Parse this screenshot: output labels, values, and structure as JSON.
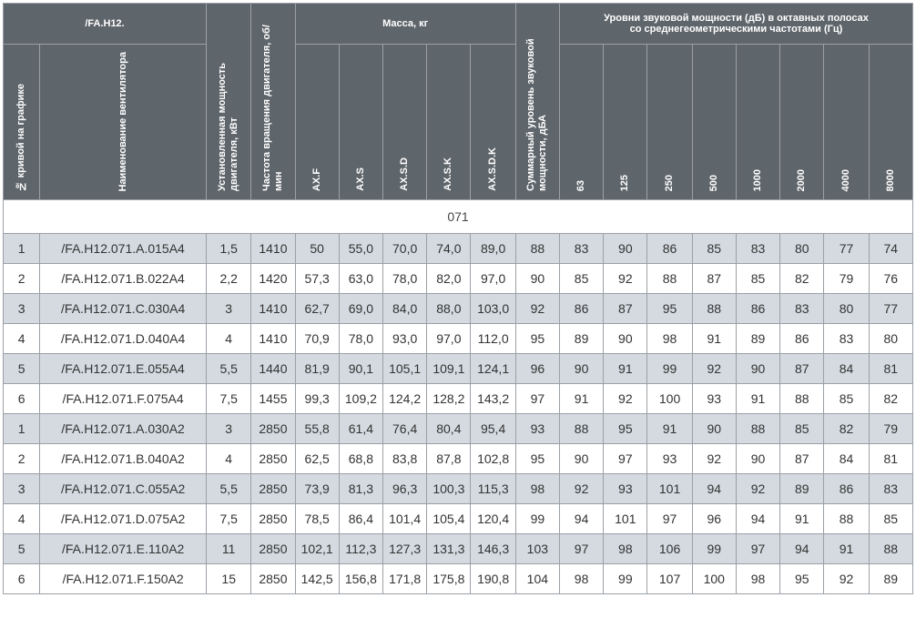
{
  "header": {
    "group_title": "/FA.H12.",
    "mass_title": "Масса, кг",
    "sound_title_line1": "Уровни звуковой мощности (дБ) в октавных полосах",
    "sound_title_line2": "со среднегеометрическими частотами (Гц)",
    "curve_no": "№ кривой на графике",
    "fan_name": "Наименование вентилятора",
    "power": "Установленная мощность двигателя, кВт",
    "speed": "Частота вращения двигателя, об/мин",
    "mass_cols": [
      "AX.F",
      "AX.S",
      "AX.S.D",
      "AX.S.K",
      "AX.S.D.K"
    ],
    "total_sound": "Суммарный уровень звуковой мощности, дБА",
    "freq_cols": [
      "63",
      "125",
      "250",
      "500",
      "1000",
      "2000",
      "4000",
      "8000"
    ]
  },
  "section_label": "071",
  "rows": [
    [
      "1",
      "/FA.H12.071.A.015A4",
      "1,5",
      "1410",
      "50",
      "55,0",
      "70,0",
      "74,0",
      "89,0",
      "88",
      "83",
      "90",
      "86",
      "85",
      "83",
      "80",
      "77",
      "74"
    ],
    [
      "2",
      "/FA.H12.071.B.022A4",
      "2,2",
      "1420",
      "57,3",
      "63,0",
      "78,0",
      "82,0",
      "97,0",
      "90",
      "85",
      "92",
      "88",
      "87",
      "85",
      "82",
      "79",
      "76"
    ],
    [
      "3",
      "/FA.H12.071.C.030A4",
      "3",
      "1410",
      "62,7",
      "69,0",
      "84,0",
      "88,0",
      "103,0",
      "92",
      "86",
      "87",
      "95",
      "88",
      "86",
      "83",
      "80",
      "77"
    ],
    [
      "4",
      "/FA.H12.071.D.040A4",
      "4",
      "1410",
      "70,9",
      "78,0",
      "93,0",
      "97,0",
      "112,0",
      "95",
      "89",
      "90",
      "98",
      "91",
      "89",
      "86",
      "83",
      "80"
    ],
    [
      "5",
      "/FA.H12.071.E.055A4",
      "5,5",
      "1440",
      "81,9",
      "90,1",
      "105,1",
      "109,1",
      "124,1",
      "96",
      "90",
      "91",
      "99",
      "92",
      "90",
      "87",
      "84",
      "81"
    ],
    [
      "6",
      "/FA.H12.071.F.075A4",
      "7,5",
      "1455",
      "99,3",
      "109,2",
      "124,2",
      "128,2",
      "143,2",
      "97",
      "91",
      "92",
      "100",
      "93",
      "91",
      "88",
      "85",
      "82"
    ],
    [
      "1",
      "/FA.H12.071.A.030A2",
      "3",
      "2850",
      "55,8",
      "61,4",
      "76,4",
      "80,4",
      "95,4",
      "93",
      "88",
      "95",
      "91",
      "90",
      "88",
      "85",
      "82",
      "79"
    ],
    [
      "2",
      "/FA.H12.071.B.040A2",
      "4",
      "2850",
      "62,5",
      "68,8",
      "83,8",
      "87,8",
      "102,8",
      "95",
      "90",
      "97",
      "93",
      "92",
      "90",
      "87",
      "84",
      "81"
    ],
    [
      "3",
      "/FA.H12.071.C.055A2",
      "5,5",
      "2850",
      "73,9",
      "81,3",
      "96,3",
      "100,3",
      "115,3",
      "98",
      "92",
      "93",
      "101",
      "94",
      "92",
      "89",
      "86",
      "83"
    ],
    [
      "4",
      "/FA.H12.071.D.075A2",
      "7,5",
      "2850",
      "78,5",
      "86,4",
      "101,4",
      "105,4",
      "120,4",
      "99",
      "94",
      "101",
      "97",
      "96",
      "94",
      "91",
      "88",
      "85"
    ],
    [
      "5",
      "/FA.H12.071.E.110A2",
      "11",
      "2850",
      "102,1",
      "112,3",
      "127,3",
      "131,3",
      "146,3",
      "103",
      "97",
      "98",
      "106",
      "99",
      "97",
      "94",
      "91",
      "88"
    ],
    [
      "6",
      "/FA.H12.071.F.150A2",
      "15",
      "2850",
      "142,5",
      "156,8",
      "171,8",
      "175,8",
      "190,8",
      "104",
      "98",
      "99",
      "107",
      "100",
      "98",
      "95",
      "92",
      "89"
    ]
  ]
}
